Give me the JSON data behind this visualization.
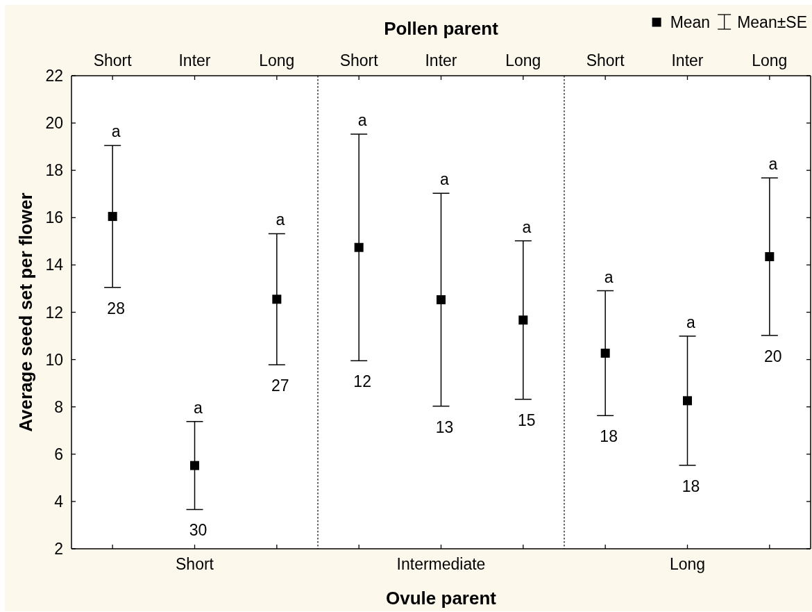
{
  "chart_data": [
    {
      "type": "scatter",
      "categories": [
        "Short",
        "Inter",
        "Long"
      ],
      "xlabel": "Short",
      "ylabel": "Average seed set per flower",
      "ylim": [
        2,
        22
      ],
      "yticks": [
        2,
        4,
        6,
        8,
        10,
        12,
        14,
        16,
        18,
        20,
        22
      ],
      "series": [
        {
          "color": "#000000",
          "values": [
            16.05,
            5.52,
            12.55
          ],
          "errors": [
            3.0,
            1.86,
            2.77
          ]
        }
      ],
      "marker": "square",
      "annotations": [
        {
          "text": "a",
          "x": "Short",
          "y": 19.05
        },
        {
          "text": "a",
          "x": "Inter",
          "y": 7.38
        },
        {
          "text": "a",
          "x": "Long",
          "y": 15.32
        },
        {
          "text": "28",
          "x": "Short",
          "y": 13.05
        },
        {
          "text": "30",
          "x": "Inter",
          "y": 3.66
        },
        {
          "text": "27",
          "x": "Long",
          "y": 9.78
        }
      ]
    },
    {
      "type": "scatter",
      "title": "Pollen parent",
      "categories": [
        "Short",
        "Inter",
        "Long"
      ],
      "xlabel": "Intermediate",
      "ylim": [
        2,
        22
      ],
      "yticks": [
        2,
        4,
        6,
        8,
        10,
        12,
        14,
        16,
        18,
        20,
        22
      ],
      "tick_labels": "x",
      "series": [
        {
          "color": "#000000",
          "values": [
            14.74,
            12.53,
            11.67
          ],
          "errors": [
            4.79,
            4.5,
            3.35
          ]
        }
      ],
      "marker": "square",
      "annotations": [
        "Ovule parent",
        {
          "text": "a",
          "x": "Short",
          "y": 19.53
        },
        {
          "text": "a",
          "x": "Inter",
          "y": 17.03
        },
        {
          "text": "a",
          "x": "Long",
          "y": 15.02
        },
        {
          "text": "12",
          "x": "Short",
          "y": 9.95
        },
        {
          "text": "13",
          "x": "Inter",
          "y": 8.03
        },
        {
          "text": "15",
          "x": "Long",
          "y": 8.32
        }
      ]
    },
    {
      "type": "scatter",
      "categories": [
        "Short",
        "Inter",
        "Long"
      ],
      "xlabel": "Long",
      "ylim": [
        2,
        22
      ],
      "yticks": [
        2,
        4,
        6,
        8,
        10,
        12,
        14,
        16,
        18,
        20,
        22
      ],
      "tick_labels": "x",
      "series": [
        {
          "name": "Mean",
          "color": "#000000",
          "values": [
            10.27,
            8.26,
            14.35
          ],
          "errors": [
            2.64,
            2.73,
            3.33
          ]
        }
      ],
      "marker": "square",
      "legend": "top right",
      "annotations": [
        "Mean±SE",
        {
          "text": "a",
          "x": "Short",
          "y": 12.91
        },
        {
          "text": "a",
          "x": "Inter",
          "y": 10.99
        },
        {
          "text": "a",
          "x": "Long",
          "y": 17.68
        },
        {
          "text": "18",
          "x": "Short",
          "y": 7.63
        },
        {
          "text": "18",
          "x": "Inter",
          "y": 5.53
        },
        {
          "text": "20",
          "x": "Long",
          "y": 11.02
        }
      ]
    }
  ]
}
